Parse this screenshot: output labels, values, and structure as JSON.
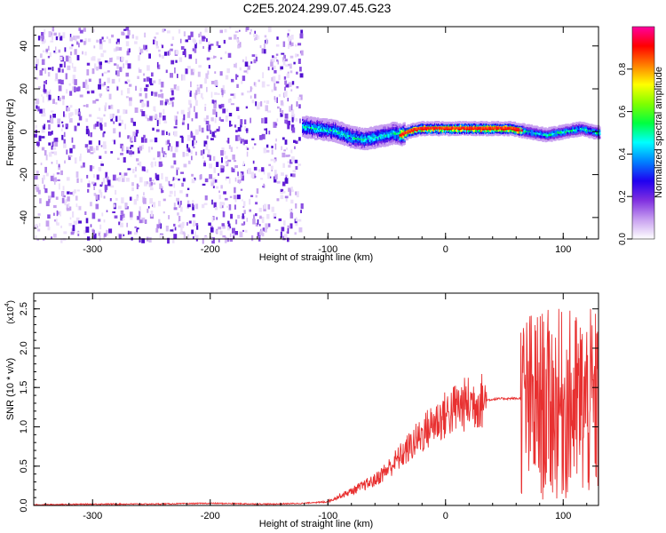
{
  "title": "C2E5.2024.299.07.45.G23",
  "chart_data": [
    {
      "type": "heatmap",
      "xlabel": "Height of straight line (km)",
      "ylabel": "Frequency (Hz)",
      "xlim": [
        -350,
        130
      ],
      "ylim": [
        -50,
        49
      ],
      "x_ticks": [
        -300,
        -200,
        -100,
        0,
        100
      ],
      "y_ticks": [
        -40,
        -20,
        0,
        20,
        40
      ],
      "x_tick_labels": [
        "-300",
        "-200",
        "-100",
        "0",
        "100"
      ],
      "y_tick_labels": [
        "-40",
        "-20",
        "0",
        "20",
        "40"
      ],
      "noise_region_x": [
        -350,
        -123
      ],
      "centerline": {
        "x": [
          -123,
          -110,
          -95,
          -80,
          -70,
          -60,
          -50,
          -45,
          -38,
          -30,
          -20,
          -10,
          0,
          20,
          40,
          55,
          65,
          75,
          85,
          95,
          105,
          115,
          130
        ],
        "y": [
          3,
          2,
          1,
          -2,
          -3,
          -2,
          -1,
          0,
          -1,
          1,
          2,
          2,
          2,
          2,
          2,
          2,
          1,
          0,
          -1,
          0,
          1,
          2,
          0
        ]
      },
      "colorbar": {
        "label": "Normalized spectral amplitude",
        "range": [
          0,
          1
        ],
        "ticks": [
          0.0,
          0.2,
          0.4,
          0.6,
          0.8
        ],
        "tick_labels": [
          "0.0",
          "0.2",
          "0.4",
          "0.6",
          "0.8"
        ],
        "colors": [
          "#ffffff",
          "#c8a0f0",
          "#8030e0",
          "#2000f0",
          "#0080ff",
          "#00ffff",
          "#00ff40",
          "#80ff00",
          "#ffff00",
          "#ff8000",
          "#ff0000",
          "#ff00a0"
        ]
      }
    },
    {
      "type": "line",
      "xlabel": "Height of straight line (km)",
      "ylabel": "SNR (10 * v/v)",
      "scale_label": "(x10",
      "scale_exponent": "4",
      "xlim": [
        -350,
        130
      ],
      "ylim": [
        0,
        2.7
      ],
      "x_ticks": [
        -300,
        -200,
        -100,
        0,
        100
      ],
      "y_ticks": [
        0.0,
        0.5,
        1.0,
        1.5,
        2.0,
        2.5
      ],
      "x_tick_labels": [
        "-300",
        "-200",
        "-100",
        "0",
        "100"
      ],
      "y_tick_labels": [
        "0.0",
        "0.5",
        "1.0",
        "1.5",
        "2.0",
        "2.5"
      ],
      "line_color": "#e83030",
      "series": [
        {
          "x": [
            -350,
            -300,
            -250,
            -200,
            -150,
            -120,
            -100,
            -90,
            -80,
            -70,
            -60,
            -50,
            -40,
            -30,
            -20,
            -10,
            0,
            10,
            20,
            30,
            40,
            50,
            60,
            64,
            66,
            70,
            75,
            80,
            85,
            90,
            95,
            100,
            105,
            110,
            115,
            120,
            125,
            130
          ],
          "y": [
            0.0,
            0.01,
            0.01,
            0.02,
            0.01,
            0.02,
            0.05,
            0.12,
            0.18,
            0.25,
            0.32,
            0.45,
            0.6,
            0.75,
            0.9,
            1.05,
            1.15,
            1.25,
            1.3,
            1.33,
            1.35,
            1.36,
            1.36,
            1.36,
            1.0,
            1.3,
            0.8,
            1.2,
            0.7,
            1.1,
            0.6,
            1.2,
            0.9,
            1.0,
            0.8,
            1.1,
            0.9,
            1.0
          ]
        }
      ]
    }
  ]
}
